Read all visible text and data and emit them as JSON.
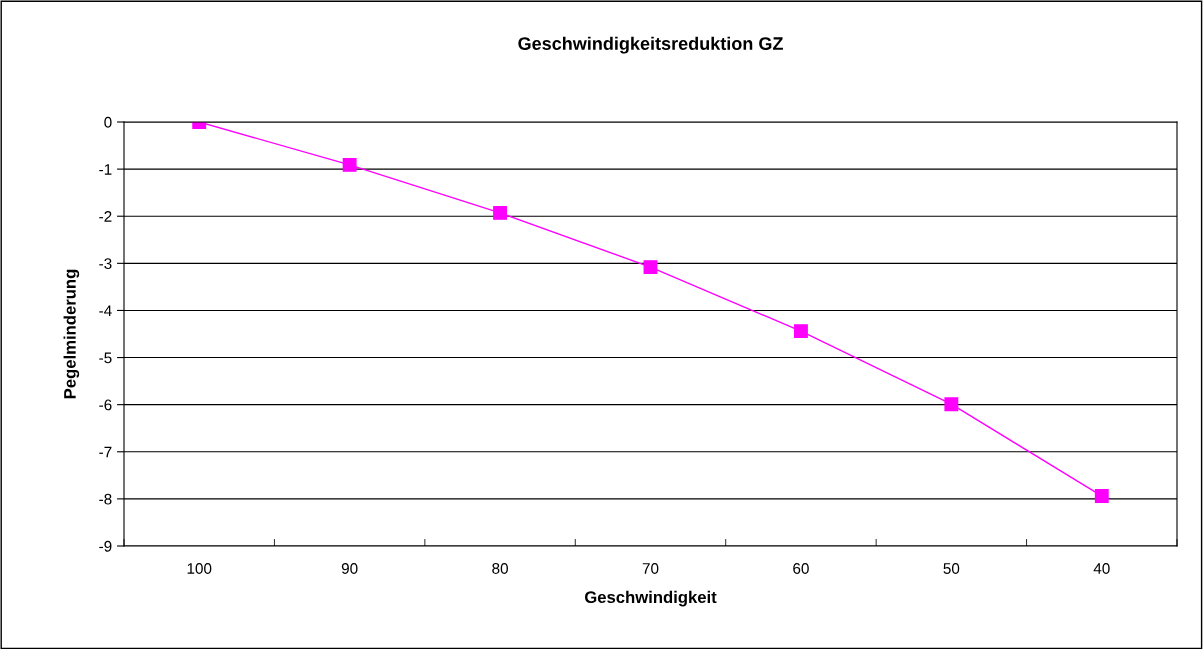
{
  "chart_data": {
    "type": "line",
    "title": "Geschwindigkeitsreduktion GZ",
    "xlabel": "Geschwindigkeit",
    "ylabel": "Pegelminderung",
    "categories": [
      "100",
      "90",
      "80",
      "70",
      "60",
      "50",
      "40"
    ],
    "series": [
      {
        "color": "#ff00ff",
        "values": [
          0,
          -0.91,
          -1.93,
          -3.08,
          -4.44,
          -5.99,
          -7.94
        ]
      }
    ],
    "ylim": [
      -9,
      0
    ],
    "yticks": [
      -9,
      -8,
      -7,
      -6,
      -5,
      -4,
      -3,
      -2,
      -1,
      0
    ],
    "grid": "y",
    "legend": false,
    "marker": "square",
    "line_style": "solid"
  }
}
